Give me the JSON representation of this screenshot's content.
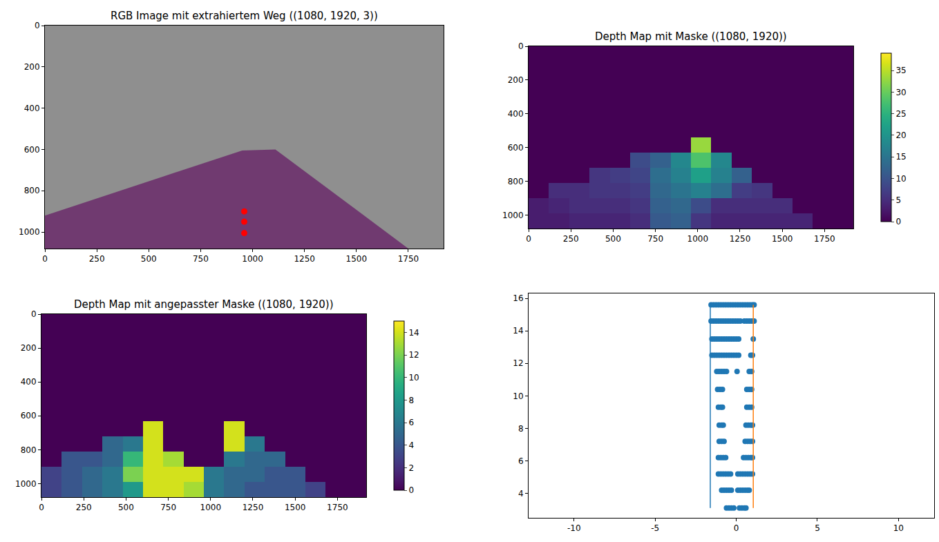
{
  "chart_data": [
    {
      "type": "image_overlay",
      "title": "RGB Image mit extrahiertem Weg ((1080, 1920, 3))",
      "xlim": [
        0,
        1920
      ],
      "xticks": [
        0,
        250,
        500,
        750,
        1000,
        1250,
        1500,
        1750
      ],
      "ylim": [
        1080,
        0
      ],
      "yticks": [
        0,
        200,
        400,
        600,
        800,
        1000
      ],
      "path": {
        "x": [
          0,
          950,
          1110,
          1750,
          0
        ],
        "y": [
          920,
          605,
          600,
          1080,
          1080
        ],
        "color": "#6b2c6b"
      },
      "points": {
        "x": [
          960,
          960,
          960
        ],
        "y": [
          900,
          950,
          1005
        ],
        "color": "#ff0000"
      }
    },
    {
      "type": "heatmap",
      "title": "Depth Map mit Maske ((1080, 1920))",
      "xlim": [
        0,
        1920
      ],
      "xticks": [
        0,
        250,
        500,
        750,
        1000,
        1250,
        1500,
        1750
      ],
      "ylim": [
        1080,
        0
      ],
      "yticks": [
        0,
        200,
        400,
        600,
        800,
        1000
      ],
      "color": "Viridis",
      "x": [
        60,
        180,
        300,
        420,
        540,
        660,
        780,
        900,
        1020,
        1140,
        1260,
        1380,
        1500,
        1620,
        1740,
        1860
      ],
      "y": [
        45,
        135,
        225,
        315,
        405,
        495,
        585,
        675,
        765,
        855,
        945,
        1035
      ],
      "z": [
        [
          0,
          0,
          0,
          0,
          0,
          0,
          0,
          0,
          0,
          0,
          0,
          0,
          0,
          0,
          0,
          0
        ],
        [
          0,
          0,
          0,
          0,
          0,
          0,
          0,
          0,
          0,
          0,
          0,
          0,
          0,
          0,
          0,
          0
        ],
        [
          0,
          0,
          0,
          0,
          0,
          0,
          0,
          0,
          0,
          0,
          0,
          0,
          0,
          0,
          0,
          0
        ],
        [
          0,
          0,
          0,
          0,
          0,
          0,
          0,
          0,
          0,
          0,
          0,
          0,
          0,
          0,
          0,
          0
        ],
        [
          0,
          0,
          0,
          0,
          0,
          0,
          0,
          0,
          0,
          0,
          0,
          0,
          0,
          0,
          0,
          0
        ],
        [
          0,
          0,
          0,
          0,
          0,
          0,
          0,
          0,
          0,
          0,
          0,
          0,
          0,
          0,
          0,
          0
        ],
        [
          0,
          0,
          0,
          0,
          0,
          0,
          0,
          0,
          33,
          0,
          0,
          0,
          0,
          0,
          0,
          0
        ],
        [
          0,
          0,
          0,
          0,
          0,
          9,
          12,
          18,
          28,
          18,
          0,
          0,
          0,
          0,
          0,
          0
        ],
        [
          0,
          0,
          0,
          6,
          7,
          8,
          14,
          17,
          22,
          17,
          12,
          0,
          0,
          0,
          0,
          0
        ],
        [
          0,
          5,
          5,
          6,
          6,
          7,
          13,
          15,
          17,
          14,
          7,
          6,
          0,
          0,
          0,
          0
        ],
        [
          3,
          4,
          5,
          5,
          5,
          6,
          12,
          13,
          9,
          5,
          5,
          5,
          5,
          0,
          0,
          0
        ],
        [
          3,
          3,
          4,
          4,
          4,
          5,
          11,
          12,
          6,
          4,
          4,
          4,
          4,
          4,
          0,
          0
        ]
      ],
      "colorbar_range": [
        0,
        39
      ],
      "colorbar_ticks": [
        0,
        5,
        10,
        15,
        20,
        25,
        30,
        35
      ]
    },
    {
      "type": "heatmap",
      "title": "Depth Map mit angepasster Maske ((1080, 1920))",
      "xlim": [
        0,
        1920
      ],
      "xticks": [
        0,
        250,
        500,
        750,
        1000,
        1250,
        1500,
        1750
      ],
      "ylim": [
        1080,
        0
      ],
      "yticks": [
        0,
        200,
        400,
        600,
        800,
        1000
      ],
      "color": "Viridis",
      "x": [
        60,
        180,
        300,
        420,
        540,
        660,
        780,
        900,
        1020,
        1140,
        1260,
        1380,
        1500,
        1620,
        1740,
        1860
      ],
      "y": [
        45,
        135,
        225,
        315,
        405,
        495,
        585,
        675,
        765,
        855,
        945,
        1035
      ],
      "z": [
        [
          0,
          0,
          0,
          0,
          0,
          0,
          0,
          0,
          0,
          0,
          0,
          0,
          0,
          0,
          0,
          0
        ],
        [
          0,
          0,
          0,
          0,
          0,
          0,
          0,
          0,
          0,
          0,
          0,
          0,
          0,
          0,
          0,
          0
        ],
        [
          0,
          0,
          0,
          0,
          0,
          0,
          0,
          0,
          0,
          0,
          0,
          0,
          0,
          0,
          0,
          0
        ],
        [
          0,
          0,
          0,
          0,
          0,
          0,
          0,
          0,
          0,
          0,
          0,
          0,
          0,
          0,
          0,
          0
        ],
        [
          0,
          0,
          0,
          0,
          0,
          0,
          0,
          0,
          0,
          0,
          0,
          0,
          0,
          0,
          0,
          0
        ],
        [
          0,
          0,
          0,
          0,
          0,
          0,
          0,
          0,
          0,
          0,
          0,
          0,
          0,
          0,
          0,
          0
        ],
        [
          0,
          0,
          0,
          0,
          0,
          0,
          0,
          0,
          0,
          0,
          0,
          0,
          0,
          0,
          0,
          0
        ],
        [
          0,
          0,
          0,
          0,
          0,
          14,
          0,
          0,
          0,
          14,
          0,
          0,
          0,
          0,
          0,
          0
        ],
        [
          0,
          0,
          0,
          5,
          6,
          14,
          0,
          0,
          0,
          14,
          6,
          0,
          0,
          0,
          0,
          0
        ],
        [
          0,
          4,
          4,
          5,
          10,
          14,
          13,
          0,
          0,
          6,
          5,
          5,
          0,
          0,
          0,
          0
        ],
        [
          3,
          4,
          5,
          6,
          12,
          14,
          14,
          14,
          6,
          5,
          5,
          4,
          4,
          0,
          0,
          0
        ],
        [
          3,
          4,
          5,
          6,
          8,
          14,
          14,
          13,
          6,
          5,
          4,
          4,
          4,
          3,
          0,
          0
        ]
      ],
      "colorbar_range": [
        0,
        15
      ],
      "colorbar_ticks": [
        0,
        2,
        4,
        6,
        8,
        10,
        12,
        14
      ]
    },
    {
      "type": "scatter",
      "xlim": [
        -12.8,
        12.2
      ],
      "xticks": [
        -10,
        -5,
        0,
        5,
        10
      ],
      "ylim": [
        2.5,
        16.3
      ],
      "yticks": [
        4,
        6,
        8,
        10,
        12,
        14,
        16
      ],
      "series": [
        {
          "type": "scatter",
          "color": "#1f77b4",
          "marker": "circle",
          "rows": [
            {
              "y": 15.6,
              "x": [
                -1.55,
                -1.4,
                -1.25,
                -1.1,
                -0.95,
                -0.8,
                -0.65,
                -0.5,
                -0.35,
                -0.2,
                -0.05,
                0.1,
                0.25,
                0.4,
                0.55,
                0.7,
                0.85,
                1.0,
                1.1
              ]
            },
            {
              "y": 14.6,
              "x": [
                -1.55,
                -1.4,
                -1.25,
                -1.1,
                -0.95,
                -0.8,
                -0.65,
                -0.5,
                -0.35,
                -0.2,
                -0.05,
                0.1,
                0.25,
                0.5,
                0.65,
                0.8,
                0.95,
                1.1
              ]
            },
            {
              "y": 13.5,
              "x": [
                -1.5,
                -1.35,
                -1.2,
                -1.05,
                -0.9,
                -0.75,
                -0.6,
                -0.45,
                -0.3,
                -0.15,
                0.0,
                0.15,
                1.05
              ]
            },
            {
              "y": 12.5,
              "x": [
                -1.5,
                -1.35,
                -1.2,
                -1.05,
                -0.9,
                -0.75,
                -0.6,
                -0.45,
                -0.3,
                -0.15,
                0.0,
                0.15,
                0.9,
                1.0
              ]
            },
            {
              "y": 11.5,
              "x": [
                -1.2,
                -1.05,
                -0.9,
                -0.75,
                -0.6,
                0.05,
                0.8,
                0.95
              ]
            },
            {
              "y": 10.4,
              "x": [
                -1.15,
                -1.0,
                -0.85,
                0.65,
                0.8,
                0.95
              ]
            },
            {
              "y": 9.3,
              "x": [
                -1.1,
                -0.95,
                -0.85,
                0.65,
                0.8,
                0.95
              ]
            },
            {
              "y": 8.2,
              "x": [
                -1.05,
                -0.9,
                -0.8,
                0.6,
                0.75,
                0.9,
                1.0
              ]
            },
            {
              "y": 7.2,
              "x": [
                -1.05,
                -0.9,
                -0.75,
                0.55,
                0.7,
                0.85,
                1.0
              ]
            },
            {
              "y": 6.2,
              "x": [
                -1.1,
                -0.95,
                -0.8,
                -0.65,
                0.45,
                0.6,
                0.75,
                0.9,
                1.0
              ]
            },
            {
              "y": 5.2,
              "x": [
                -1.1,
                -0.95,
                -0.8,
                -0.65,
                -0.5,
                -0.35,
                0.1,
                0.25,
                0.4,
                0.55,
                0.7,
                0.85,
                1.0
              ]
            },
            {
              "y": 4.2,
              "x": [
                -0.9,
                -0.75,
                -0.6,
                -0.45,
                -0.3,
                0.1,
                0.25,
                0.4,
                0.55,
                0.7,
                0.8
              ]
            },
            {
              "y": 3.1,
              "x": [
                -0.6,
                -0.45,
                -0.3,
                -0.15,
                0.2,
                0.35,
                0.5,
                0.6
              ]
            }
          ]
        },
        {
          "type": "line",
          "color": "#1f77b4",
          "x": [
            -1.6,
            -1.6
          ],
          "y": [
            3.1,
            15.6
          ]
        },
        {
          "type": "line",
          "color": "#ff7f0e",
          "x": [
            1.05,
            1.05
          ],
          "y": [
            3.1,
            15.6
          ]
        }
      ]
    }
  ]
}
